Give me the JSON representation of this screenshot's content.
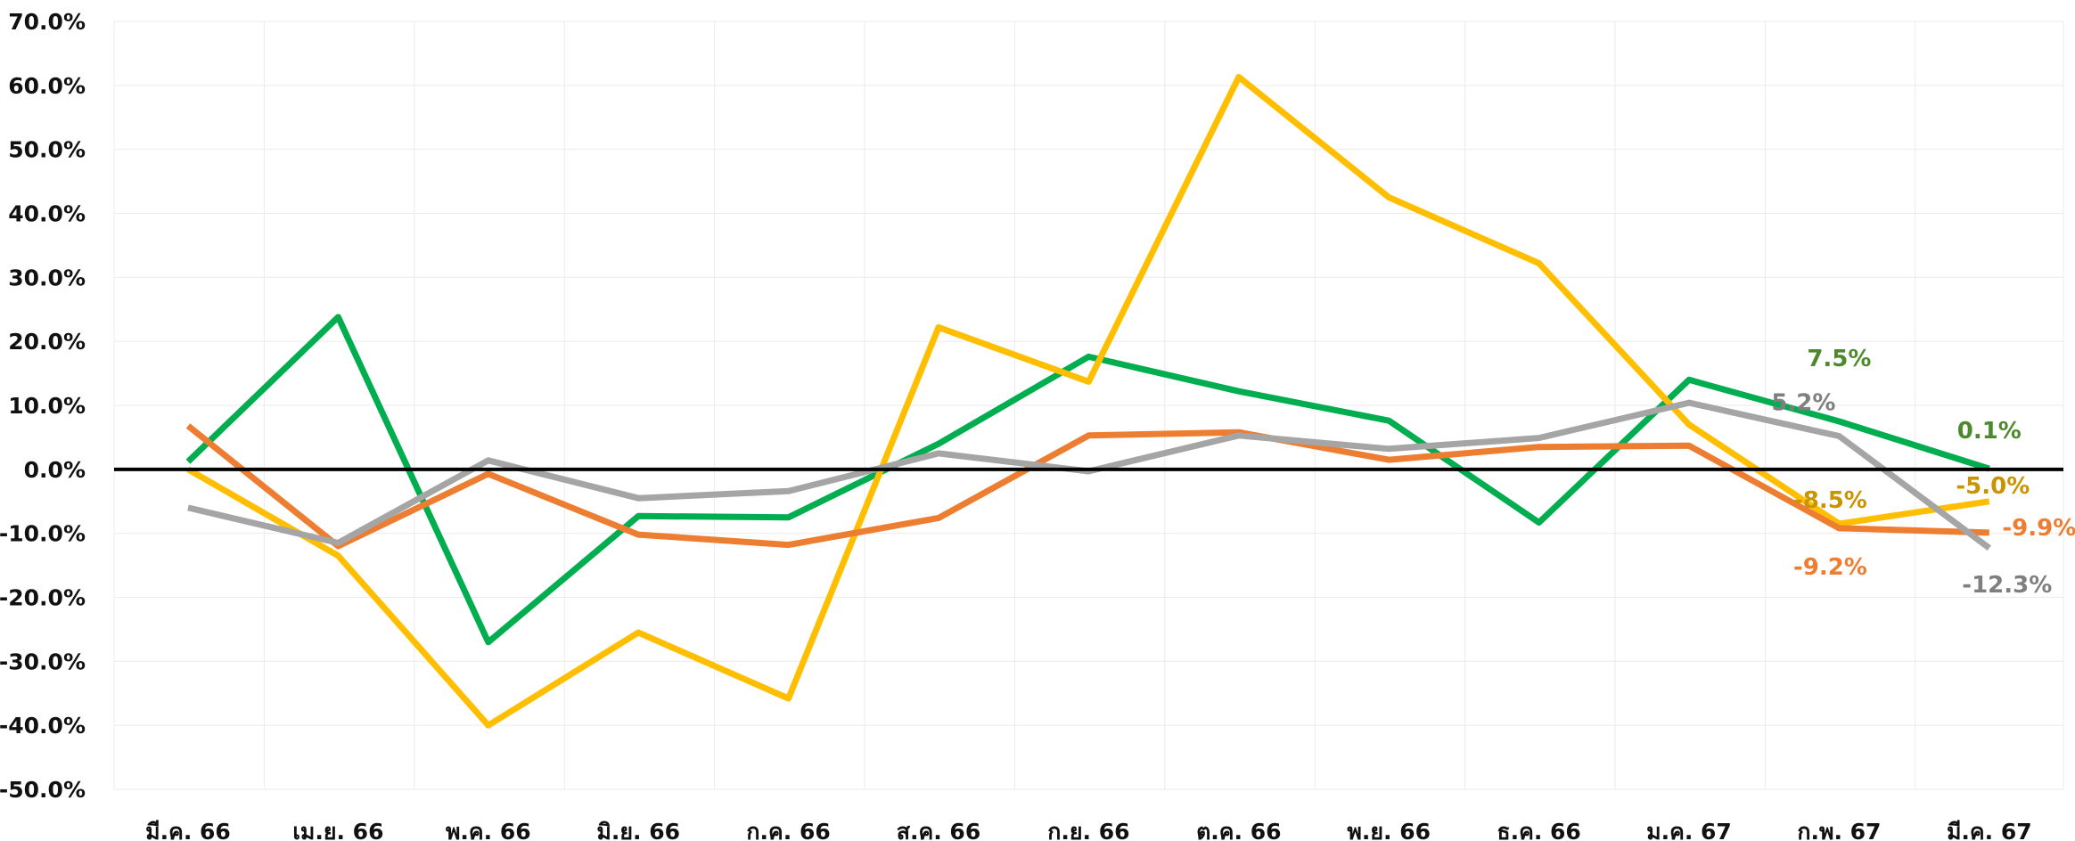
{
  "chart_data": {
    "type": "line",
    "title": "",
    "xlabel": "",
    "ylabel": "",
    "categories": [
      "มี.ค. 66",
      "เม.ย. 66",
      "พ.ค. 66",
      "มิ.ย. 66",
      "ก.ค. 66",
      "ส.ค. 66",
      "ก.ย. 66",
      "ต.ค. 66",
      "พ.ย. 66",
      "ธ.ค. 66",
      "ม.ค. 67",
      "ก.พ. 67",
      "มี.ค. 67"
    ],
    "ylim": [
      -50,
      70
    ],
    "yticks": [
      -50,
      -40,
      -30,
      -20,
      -10,
      0,
      10,
      20,
      30,
      40,
      50,
      60,
      70
    ],
    "ytick_labels": [
      "-50.0%",
      "-40.0%",
      "-30.0%",
      "-20.0%",
      "-10.0%",
      "0.0%",
      "10.0%",
      "20.0%",
      "30.0%",
      "40.0%",
      "50.0%",
      "60.0%",
      "70.0%"
    ],
    "grid": true,
    "legend": "none",
    "series": [
      {
        "color": "#00AD4F",
        "values": [
          1.2,
          23.8,
          -27.0,
          -7.3,
          -7.5,
          4.0,
          17.6,
          12.2,
          7.6,
          -8.3,
          14.0,
          7.5,
          0.1
        ],
        "end_labels": [
          {
            "index": 11,
            "text": "7.5%",
            "color": "#4E8A2C"
          },
          {
            "index": 12,
            "text": "0.1%",
            "color": "#4E8A2C"
          }
        ]
      },
      {
        "color": "#FFBF00",
        "values": [
          0.0,
          -13.5,
          -40.0,
          -25.5,
          -35.8,
          22.2,
          13.7,
          61.3,
          42.5,
          32.2,
          7.0,
          -8.5,
          -5.0
        ],
        "end_labels": [
          {
            "index": 11,
            "text": "-8.5%",
            "color": "#C99400"
          },
          {
            "index": 12,
            "text": "-5.0%",
            "color": "#C99400"
          }
        ]
      },
      {
        "color": "#ED7D31",
        "values": [
          6.8,
          -12.0,
          -0.7,
          -10.2,
          -11.8,
          -7.6,
          5.3,
          5.8,
          1.5,
          3.5,
          3.7,
          -9.2,
          -9.9
        ],
        "end_labels": [
          {
            "index": 11,
            "text": "-9.2%",
            "color": "#ED7D31"
          },
          {
            "index": 12,
            "text": "-9.9%",
            "color": "#ED7D31"
          }
        ]
      },
      {
        "color": "#A5A5A5",
        "values": [
          -6.0,
          -11.5,
          1.4,
          -4.5,
          -3.4,
          2.5,
          -0.3,
          5.3,
          3.2,
          4.9,
          10.4,
          5.2,
          -12.3
        ],
        "end_labels": [
          {
            "index": 11,
            "text": "5.2%",
            "color": "#7F7F7F"
          },
          {
            "index": 12,
            "text": "-12.3%",
            "color": "#7F7F7F"
          }
        ]
      }
    ]
  }
}
